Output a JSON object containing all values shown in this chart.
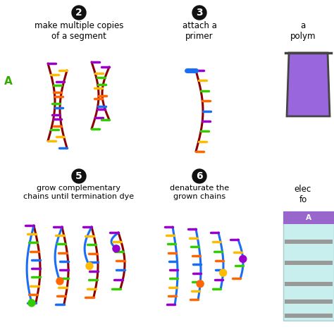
{
  "bg_color": "#ffffff",
  "step2_title": "make multiple copies\nof a segment",
  "step3_title": "attach a\nprimer",
  "step4_label": "a\npolym",
  "step5_title": "grow complementary\nchains until termination dye",
  "step6_title": "denaturate the\ngrown chains",
  "step7_label": "elec\nfo",
  "backbone_color": "#8B0000",
  "blue_backbone": "#1a6ef5",
  "primer_color": "#1a6ef5",
  "bar_colors": [
    "#9900cc",
    "#ffbb00",
    "#33cc00",
    "#ff6600",
    "#1a6ef5"
  ],
  "beaker_fill": "#9966dd",
  "beaker_outline": "#444444",
  "gel_bg": "#c8eeee",
  "gel_header": "#9966cc",
  "gel_band": "#999999",
  "label_A_color": "#33aa00",
  "term_colors": [
    "#33cc00",
    "#ff6600",
    "#ffbb00",
    "#9900cc"
  ],
  "circle_bg": "#111111"
}
